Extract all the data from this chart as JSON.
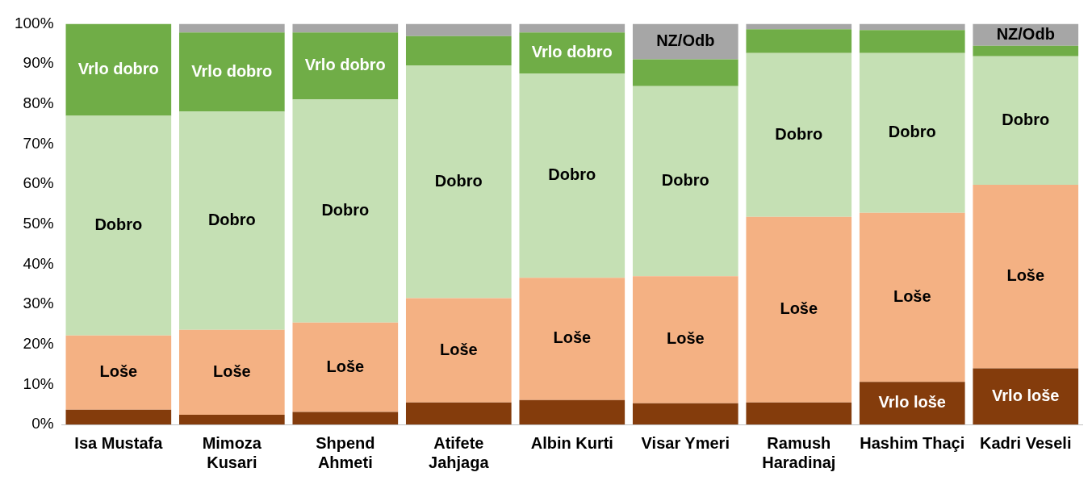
{
  "chart_data": {
    "type": "bar",
    "stacked": true,
    "grid": false,
    "legend": false,
    "categories": [
      "Isa Mustafa",
      "Mimoza Kusari",
      "Shpend Ahmeti",
      "Atifete Jahjaga",
      "Albin Kurti",
      "Visar Ymeri",
      "Ramush Haradinaj",
      "Hashim Thaçi",
      "Kadri Veseli"
    ],
    "ylim": [
      0,
      100
    ],
    "yticks": [
      {
        "value": 0,
        "label": "0%"
      },
      {
        "value": 10,
        "label": "10%"
      },
      {
        "value": 20,
        "label": "20%"
      },
      {
        "value": 30,
        "label": "30%"
      },
      {
        "value": 40,
        "label": "40%"
      },
      {
        "value": 50,
        "label": "50%"
      },
      {
        "value": 60,
        "label": "60%"
      },
      {
        "value": 70,
        "label": "70%"
      },
      {
        "value": 80,
        "label": "80%"
      },
      {
        "value": 90,
        "label": "90%"
      },
      {
        "value": 100,
        "label": "100%"
      }
    ],
    "series": [
      {
        "color": "#843c0c",
        "values": [
          3.7,
          2.4,
          3.1,
          5.5,
          6.1,
          5.3,
          5.5,
          10.6,
          14.0
        ],
        "value_labels": [
          null,
          null,
          null,
          null,
          null,
          null,
          null,
          "Vrlo loše",
          "Vrlo loše"
        ]
      },
      {
        "color": "#f4b183",
        "values": [
          18.5,
          21.2,
          22.3,
          26.0,
          30.5,
          31.7,
          46.3,
          42.2,
          45.8
        ],
        "value_labels": [
          "Loše",
          "Loše",
          "Loše",
          "Loše",
          "Loše",
          "Loše",
          "Loše",
          "Loše",
          "Loše"
        ]
      },
      {
        "color": "#c5e0b4",
        "values": [
          54.8,
          54.5,
          55.7,
          58.1,
          51.0,
          47.4,
          40.9,
          39.9,
          32.1
        ],
        "value_labels": [
          "Dobro",
          "Dobro",
          "Dobro",
          "Dobro",
          "Dobro",
          "Dobro",
          "Dobro",
          "Dobro",
          "Dobro"
        ]
      },
      {
        "color": "#70ad47",
        "values": [
          23.0,
          19.7,
          16.7,
          7.3,
          10.2,
          6.7,
          5.9,
          5.7,
          2.6
        ],
        "value_labels": [
          "Vrlo dobro",
          "Vrlo dobro",
          "Vrlo dobro",
          null,
          "Vrlo dobro",
          null,
          null,
          null,
          null
        ]
      },
      {
        "color": "#a6a6a6",
        "values": [
          0,
          2.2,
          2.2,
          3.1,
          2.2,
          8.9,
          1.4,
          1.6,
          5.5
        ],
        "value_labels": [
          null,
          null,
          null,
          null,
          null,
          "NZ/Odb",
          null,
          null,
          "NZ/Odb"
        ]
      }
    ]
  }
}
